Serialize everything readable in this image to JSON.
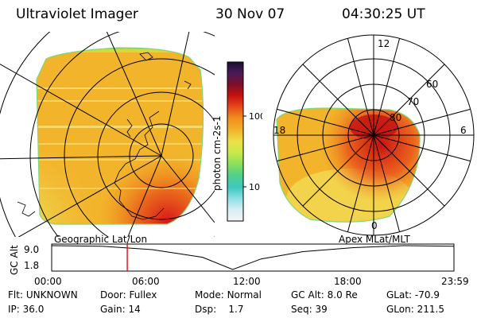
{
  "header": {
    "instrument": "Ultraviolet Imager",
    "date": "30 Nov 07",
    "time": "04:30:25 UT"
  },
  "colorbar": {
    "unit_label": "photon cm-2s-1",
    "ticks": [
      "100",
      "10"
    ],
    "colors": [
      "#1a1030",
      "#4b1a5a",
      "#7a0f2a",
      "#c41010",
      "#e8461a",
      "#f08c1e",
      "#f2b42a",
      "#ede04a",
      "#c8e84a",
      "#8ee05a",
      "#52d08a",
      "#3ec8c0",
      "#8ee0e8",
      "#d8eef2",
      "#f4f4f4"
    ]
  },
  "geo_panel": {
    "label": "Geographic Lat/Lon"
  },
  "polar_panel": {
    "label": "Apex MLat/MLT",
    "mlt_labels": {
      "top": "12",
      "left": "18",
      "right": "6",
      "bottom": "0"
    },
    "lat_labels": [
      "60",
      "70",
      "80"
    ]
  },
  "timeline": {
    "ylabel": "GC Alt",
    "ymax": "9.0",
    "ymin": "1.8",
    "ticks": [
      "00:00",
      "06:00",
      "12:00",
      "18:00",
      "23:59"
    ],
    "current_time_hours": 4.51,
    "altitude_curve": [
      [
        0,
        9.0
      ],
      [
        3,
        8.8
      ],
      [
        6,
        7.8
      ],
      [
        9,
        5.5
      ],
      [
        10.8,
        1.8
      ],
      [
        12.5,
        5.0
      ],
      [
        15,
        7.2
      ],
      [
        18,
        8.4
      ],
      [
        21,
        9.0
      ],
      [
        24,
        8.8
      ]
    ]
  },
  "footer": {
    "rows": [
      [
        {
          "label": "Flt:",
          "value": "UNKNOWN"
        },
        {
          "label": "Door:",
          "value": "Fullex"
        },
        {
          "label": "Mode:",
          "value": "Normal"
        },
        {
          "label": "GC Alt:",
          "value": "8.0 Re"
        },
        {
          "label": "GLat:",
          "value": "-70.9"
        }
      ],
      [
        {
          "label": "IP:",
          "value": "36.0"
        },
        {
          "label": "Gain:",
          "value": "14"
        },
        {
          "label": "Dsp:",
          "value": "1.7"
        },
        {
          "label": "Seq:",
          "value": "39"
        },
        {
          "label": "GLon:",
          "value": "211.5"
        }
      ]
    ]
  }
}
